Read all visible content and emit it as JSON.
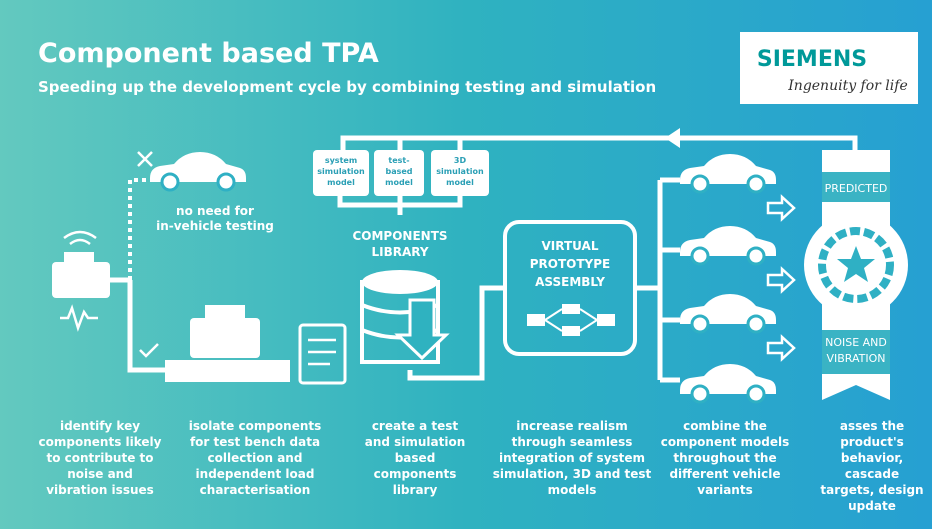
{
  "header": {
    "title": "Component based TPA",
    "subtitle": "Speeding up the development cycle by combining testing and simulation"
  },
  "logo": {
    "brand": "SIEMENS",
    "tagline": "Ingenuity for life"
  },
  "diagram": {
    "no_testing": [
      "no need for",
      "in-vehicle testing"
    ],
    "library": [
      "COMPONENTS",
      "LIBRARY"
    ],
    "models": [
      [
        "system",
        "simulation",
        "model"
      ],
      [
        "test-",
        "based",
        "model"
      ],
      [
        "3D",
        "simulation",
        "model"
      ]
    ],
    "assembly": [
      "VIRTUAL",
      "PROTOTYPE",
      "ASSEMBLY"
    ],
    "badge_top": "PREDICTED",
    "badge_bottom": [
      "NOISE AND",
      "VIBRATION"
    ]
  },
  "steps": [
    [
      "identify key",
      "components likely",
      "to contribute to",
      "noise and",
      "vibration issues"
    ],
    [
      "isolate components",
      "for test bench data",
      "collection and",
      "independent load",
      "characterisation"
    ],
    [
      "create a test",
      "and simulation",
      "based",
      "components",
      "library"
    ],
    [
      "increase realism",
      "through seamless",
      "integration of system",
      "simulation, 3D and test",
      "models"
    ],
    [
      "combine the",
      "component models",
      "throughout the",
      "different vehicle",
      "variants"
    ],
    [
      "asses the",
      "product's",
      "behavior,",
      "cascade",
      "targets, design",
      "update"
    ]
  ]
}
